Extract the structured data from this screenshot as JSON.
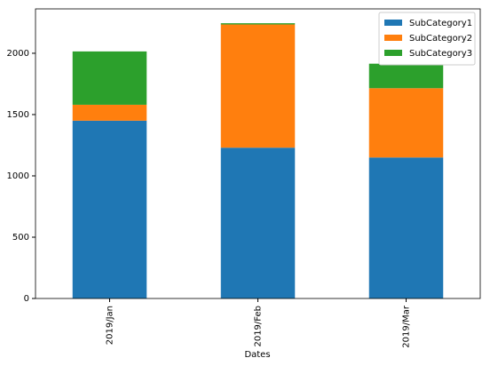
{
  "chart_data": {
    "type": "stacked_bar",
    "x_label": "Dates",
    "categories": [
      "2019/Jan",
      "2019/Feb",
      "2019/Mar"
    ],
    "series": [
      {
        "name": "SubCategory1",
        "color": "#1f77b4",
        "values": [
          1450,
          1230,
          1150
        ]
      },
      {
        "name": "SubCategory2",
        "color": "#ff7f0e",
        "values": [
          130,
          1005,
          565
        ]
      },
      {
        "name": "SubCategory3",
        "color": "#2ca02c",
        "values": [
          435,
          10,
          200
        ]
      }
    ],
    "ylim": [
      0,
      2362
    ],
    "yticks": [
      0,
      500,
      1000,
      1500,
      2000
    ],
    "legend": "upper right"
  }
}
